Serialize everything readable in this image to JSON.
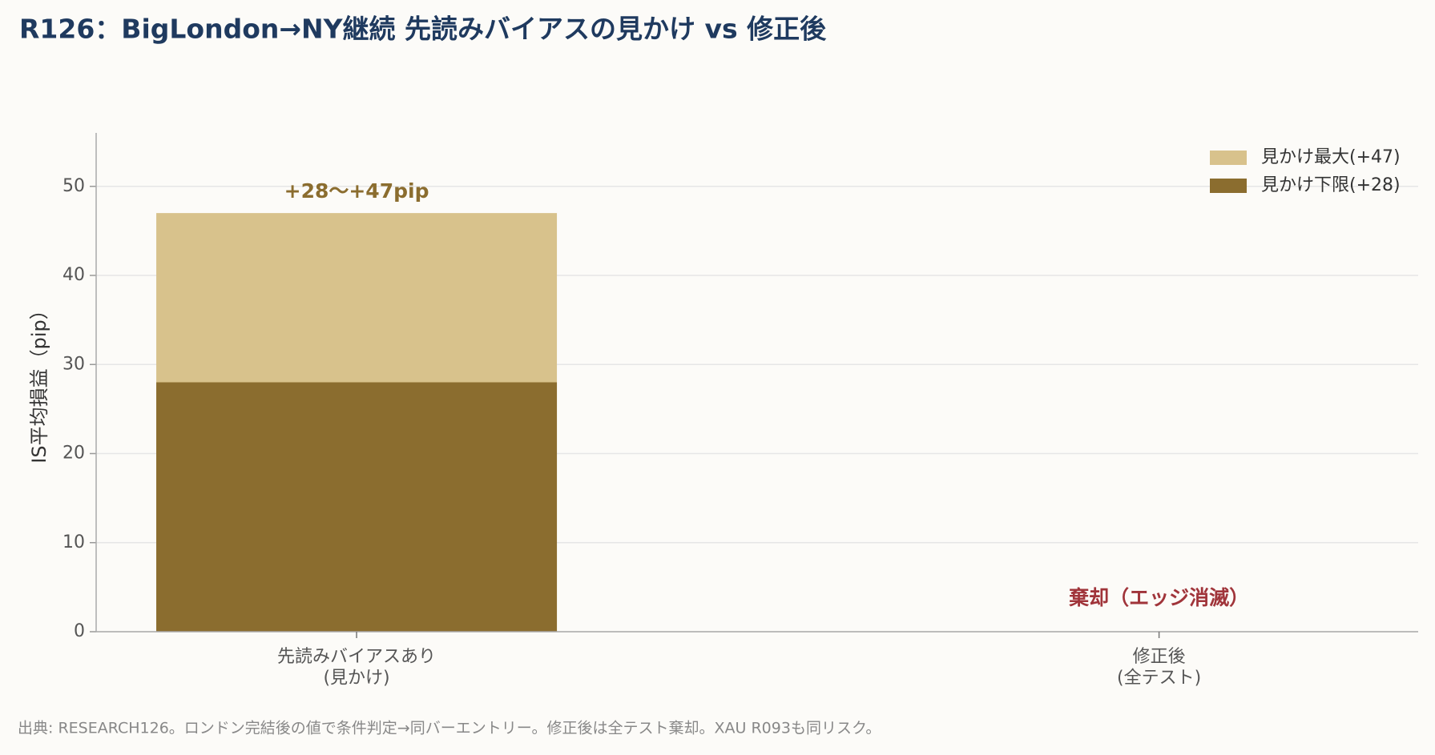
{
  "chart_data": {
    "type": "bar",
    "title": "R126：BigLondon→NY継続 先読みバイアスの見かけ vs 修正後",
    "ylabel": "IS平均損益（pip）",
    "categories": [
      "先読みバイアスあり\n(見かけ)",
      "修正後\n(全テスト)"
    ],
    "series": [
      {
        "name": "見かけ最大(+47)",
        "color": "#d8c28c",
        "values": [
          47,
          null
        ]
      },
      {
        "name": "見かけ下限(+28)",
        "color": "#8b6d2f",
        "values": [
          28,
          null
        ]
      }
    ],
    "ylim": [
      0,
      56
    ],
    "yticks": [
      0,
      10,
      20,
      30,
      40,
      50
    ],
    "grid": true,
    "legend": "upper right",
    "annotations": [
      {
        "text": "+28〜+47pip",
        "category": 0,
        "color": "#8b6d2f"
      },
      {
        "text": "棄却（エッジ消滅）",
        "category": 1,
        "color": "#a0343a"
      }
    ],
    "footnote": "出典: RESEARCH126。ロンドン完結後の値で条件判定→同バーエントリー。修正後は全テスト棄却。XAU R093も同リスク。"
  }
}
